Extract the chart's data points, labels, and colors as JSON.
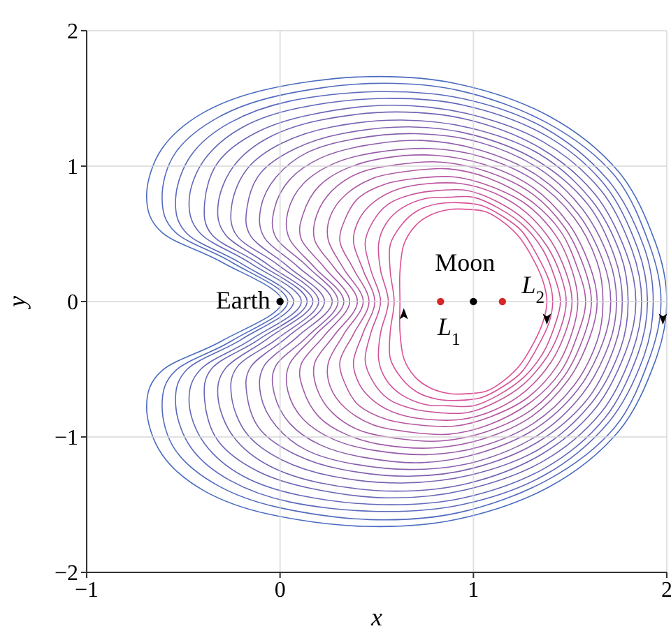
{
  "chart_data": {
    "type": "scatter",
    "xlabel": "x",
    "ylabel": "y",
    "xlim": [
      -1,
      2
    ],
    "ylim": [
      -2,
      2
    ],
    "xticks": [
      {
        "value": -1,
        "label": "−1"
      },
      0,
      1,
      2
    ],
    "yticks": [
      {
        "value": -2,
        "label": "−2"
      },
      {
        "value": -1,
        "label": "−1"
      },
      0,
      1,
      2
    ],
    "grid": true,
    "annotations": [
      {
        "text": "Earth",
        "x": 0,
        "y": 0
      },
      {
        "text": "Moon",
        "x": 1,
        "y": 0
      },
      {
        "text": "L$_{1}$",
        "x": 0.83,
        "y": 0
      },
      {
        "text": "L$_{2}$",
        "x": 1.15,
        "y": 0
      }
    ],
    "series": [
      {
        "color": "#000000",
        "x": [
          0,
          1
        ],
        "values": [
          0,
          0
        ]
      },
      {
        "color": "#d62728",
        "x": [
          0.83,
          1.15
        ],
        "values": [
          0,
          0
        ]
      }
    ]
  }
}
